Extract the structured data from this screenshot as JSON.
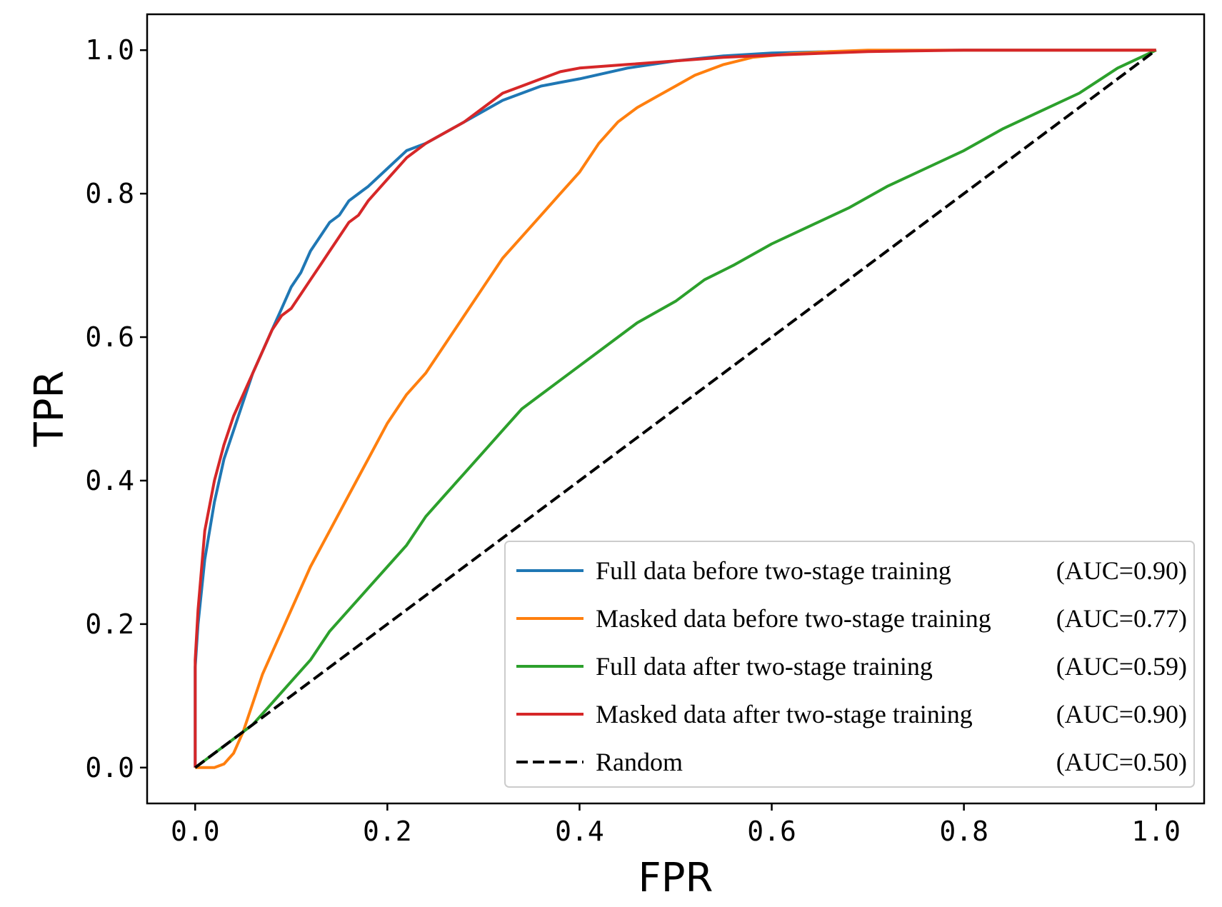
{
  "chart_data": {
    "type": "line",
    "title": "",
    "xlabel": "FPR",
    "ylabel": "TPR",
    "xlim": [
      -0.05,
      1.05
    ],
    "ylim": [
      -0.05,
      1.05
    ],
    "xticks": [
      0.0,
      0.2,
      0.4,
      0.6,
      0.8,
      1.0
    ],
    "yticks": [
      0.0,
      0.2,
      0.4,
      0.6,
      0.8,
      1.0
    ],
    "xtick_labels": [
      "0.0",
      "0.2",
      "0.4",
      "0.6",
      "0.8",
      "1.0"
    ],
    "ytick_labels": [
      "0.0",
      "0.2",
      "0.4",
      "0.6",
      "0.8",
      "1.0"
    ],
    "grid": false,
    "legend_position": "lower-right",
    "series": [
      {
        "name": "Full data before two-stage training",
        "auc_label": "(AUC=0.90)",
        "color": "#1f77b4",
        "dash": "solid",
        "x": [
          0,
          0.0,
          0.003,
          0.01,
          0.02,
          0.03,
          0.04,
          0.05,
          0.06,
          0.07,
          0.08,
          0.09,
          0.1,
          0.11,
          0.12,
          0.13,
          0.14,
          0.15,
          0.16,
          0.17,
          0.18,
          0.2,
          0.22,
          0.24,
          0.26,
          0.28,
          0.3,
          0.32,
          0.34,
          0.36,
          0.38,
          0.4,
          0.45,
          0.5,
          0.55,
          0.6,
          0.7,
          0.8,
          0.9,
          1.0
        ],
        "y": [
          0,
          0.14,
          0.2,
          0.29,
          0.37,
          0.43,
          0.47,
          0.51,
          0.55,
          0.58,
          0.61,
          0.64,
          0.67,
          0.69,
          0.72,
          0.74,
          0.76,
          0.77,
          0.79,
          0.8,
          0.81,
          0.835,
          0.86,
          0.87,
          0.885,
          0.9,
          0.915,
          0.93,
          0.94,
          0.95,
          0.955,
          0.96,
          0.975,
          0.985,
          0.992,
          0.996,
          0.999,
          1.0,
          1.0,
          1.0
        ]
      },
      {
        "name": "Masked data before two-stage training",
        "auc_label": "(AUC=0.77)",
        "color": "#ff7f0e",
        "dash": "solid",
        "x": [
          0,
          0.01,
          0.02,
          0.03,
          0.04,
          0.05,
          0.06,
          0.07,
          0.08,
          0.09,
          0.1,
          0.12,
          0.14,
          0.16,
          0.18,
          0.2,
          0.22,
          0.24,
          0.26,
          0.28,
          0.3,
          0.32,
          0.34,
          0.36,
          0.38,
          0.4,
          0.42,
          0.44,
          0.46,
          0.48,
          0.5,
          0.52,
          0.55,
          0.58,
          0.62,
          0.66,
          0.7,
          0.8,
          0.9,
          1.0
        ],
        "y": [
          0,
          0.0,
          0.0,
          0.005,
          0.02,
          0.05,
          0.09,
          0.13,
          0.16,
          0.19,
          0.22,
          0.28,
          0.33,
          0.38,
          0.43,
          0.48,
          0.52,
          0.55,
          0.59,
          0.63,
          0.67,
          0.71,
          0.74,
          0.77,
          0.8,
          0.83,
          0.87,
          0.9,
          0.92,
          0.935,
          0.95,
          0.965,
          0.98,
          0.99,
          0.995,
          0.998,
          1.0,
          1.0,
          1.0,
          1.0
        ]
      },
      {
        "name": "Full data after two-stage training",
        "auc_label": "(AUC=0.59)",
        "color": "#2ca02c",
        "dash": "solid",
        "x": [
          0,
          0.02,
          0.04,
          0.06,
          0.08,
          0.1,
          0.12,
          0.14,
          0.16,
          0.18,
          0.2,
          0.22,
          0.24,
          0.26,
          0.28,
          0.3,
          0.32,
          0.34,
          0.36,
          0.38,
          0.4,
          0.43,
          0.46,
          0.5,
          0.53,
          0.56,
          0.6,
          0.64,
          0.68,
          0.72,
          0.76,
          0.8,
          0.84,
          0.88,
          0.92,
          0.96,
          1.0
        ],
        "y": [
          0,
          0.02,
          0.04,
          0.06,
          0.09,
          0.12,
          0.15,
          0.19,
          0.22,
          0.25,
          0.28,
          0.31,
          0.35,
          0.38,
          0.41,
          0.44,
          0.47,
          0.5,
          0.52,
          0.54,
          0.56,
          0.59,
          0.62,
          0.65,
          0.68,
          0.7,
          0.73,
          0.755,
          0.78,
          0.81,
          0.835,
          0.86,
          0.89,
          0.915,
          0.94,
          0.975,
          1.0
        ]
      },
      {
        "name": "Masked data after two-stage training",
        "auc_label": "(AUC=0.90)",
        "color": "#d62728",
        "dash": "solid",
        "x": [
          0,
          0.0,
          0.003,
          0.01,
          0.02,
          0.03,
          0.04,
          0.05,
          0.06,
          0.07,
          0.08,
          0.09,
          0.1,
          0.11,
          0.12,
          0.13,
          0.14,
          0.15,
          0.16,
          0.17,
          0.18,
          0.2,
          0.22,
          0.24,
          0.26,
          0.28,
          0.3,
          0.32,
          0.34,
          0.36,
          0.38,
          0.4,
          0.45,
          0.5,
          0.55,
          0.6,
          0.7,
          0.8,
          0.9,
          1.0
        ],
        "y": [
          0,
          0.15,
          0.22,
          0.33,
          0.4,
          0.45,
          0.49,
          0.52,
          0.55,
          0.58,
          0.61,
          0.63,
          0.64,
          0.66,
          0.68,
          0.7,
          0.72,
          0.74,
          0.76,
          0.77,
          0.79,
          0.82,
          0.85,
          0.87,
          0.885,
          0.9,
          0.92,
          0.94,
          0.95,
          0.96,
          0.97,
          0.975,
          0.98,
          0.985,
          0.99,
          0.993,
          0.998,
          1.0,
          1.0,
          1.0
        ]
      },
      {
        "name": "Random",
        "auc_label": "(AUC=0.50)",
        "color": "#000000",
        "dash": "dashed",
        "x": [
          0,
          1
        ],
        "y": [
          0,
          1
        ]
      }
    ]
  }
}
